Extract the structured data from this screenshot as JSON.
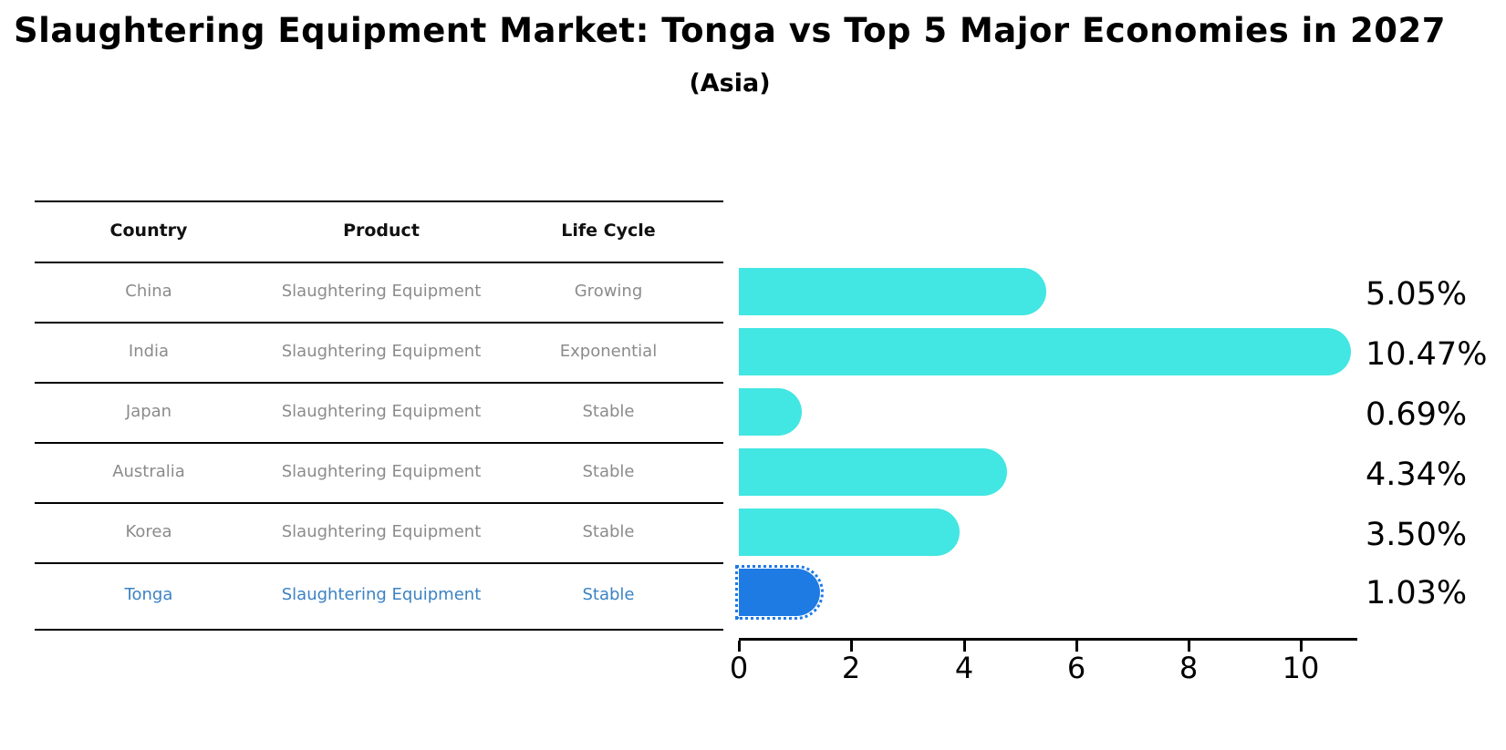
{
  "header": {
    "title": "Slaughtering Equipment Market: Tonga vs Top 5 Major Economies in 2027",
    "subtitle": "(Asia)"
  },
  "table": {
    "columns": {
      "country": "Country",
      "product": "Product",
      "life_cycle": "Life Cycle"
    },
    "rows": [
      {
        "country": "China",
        "product": "Slaughtering Equipment",
        "life_cycle": "Growing",
        "highlighted": false
      },
      {
        "country": "India",
        "product": "Slaughtering Equipment",
        "life_cycle": "Exponential",
        "highlighted": false
      },
      {
        "country": "Japan",
        "product": "Slaughtering Equipment",
        "life_cycle": "Stable",
        "highlighted": false
      },
      {
        "country": "Australia",
        "product": "Slaughtering Equipment",
        "life_cycle": "Stable",
        "highlighted": false
      },
      {
        "country": "Korea",
        "product": "Slaughtering Equipment",
        "life_cycle": "Stable",
        "highlighted": false
      },
      {
        "country": "Tonga",
        "product": "Slaughtering Equipment",
        "life_cycle": "Stable",
        "highlighted": true
      }
    ]
  },
  "chart_data": {
    "type": "bar",
    "orientation": "horizontal",
    "title": "Slaughtering Equipment Market: Tonga vs Top 5 Major Economies in 2027",
    "subtitle": "(Asia)",
    "categories": [
      "China",
      "India",
      "Japan",
      "Australia",
      "Korea",
      "Tonga"
    ],
    "values": [
      5.05,
      10.47,
      0.69,
      4.34,
      3.5,
      1.03
    ],
    "value_labels": [
      "5.05%",
      "10.47%",
      "0.69%",
      "4.34%",
      "3.50%",
      "1.03%"
    ],
    "x_ticks": [
      0,
      2,
      4,
      6,
      8,
      10
    ],
    "xlim": [
      0,
      11.0
    ],
    "grid": false,
    "legend": false,
    "highlight_index": 5,
    "bar_color": "#42e6e2",
    "highlight_color": "#1f7be4"
  },
  "colors": {
    "bar_cyan": "#42e6e2",
    "bar_blue": "#1f7be4",
    "table_text": "#8b8b8b",
    "highlight_text": "#3b82c4"
  }
}
